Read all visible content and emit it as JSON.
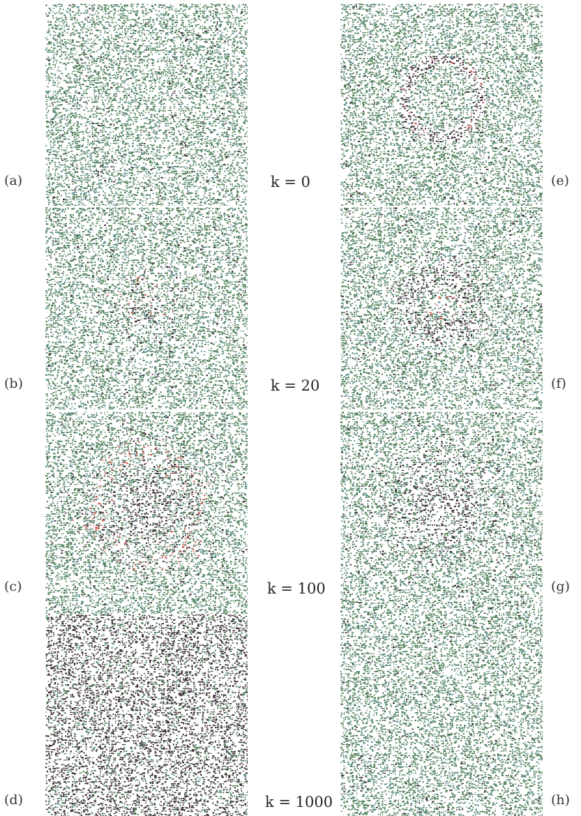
{
  "figure": {
    "rows": [
      {
        "k_label": "k = 0",
        "k_value": 0
      },
      {
        "k_label": "k = 20",
        "k_value": 20
      },
      {
        "k_label": "k = 100",
        "k_value": 100
      },
      {
        "k_label": "k = 1000",
        "k_value": 1000
      }
    ],
    "panels": [
      {
        "label": "(a)",
        "pattern": "uniform-green"
      },
      {
        "label": "(b)",
        "pattern": "faint-center-red"
      },
      {
        "label": "(c)",
        "pattern": "dark-blob-red-edges"
      },
      {
        "label": "(d)",
        "pattern": "uniform-dark"
      },
      {
        "label": "(e)",
        "pattern": "dark-ring"
      },
      {
        "label": "(f)",
        "pattern": "diffuse-ring-red-center"
      },
      {
        "label": "(g)",
        "pattern": "dark-blob"
      },
      {
        "label": "(h)",
        "pattern": "uniform-green"
      }
    ],
    "colors": {
      "green": "#4f7f56",
      "teal": "#5b8d87",
      "dark": "#3d3138",
      "red": "#c8574c"
    }
  }
}
